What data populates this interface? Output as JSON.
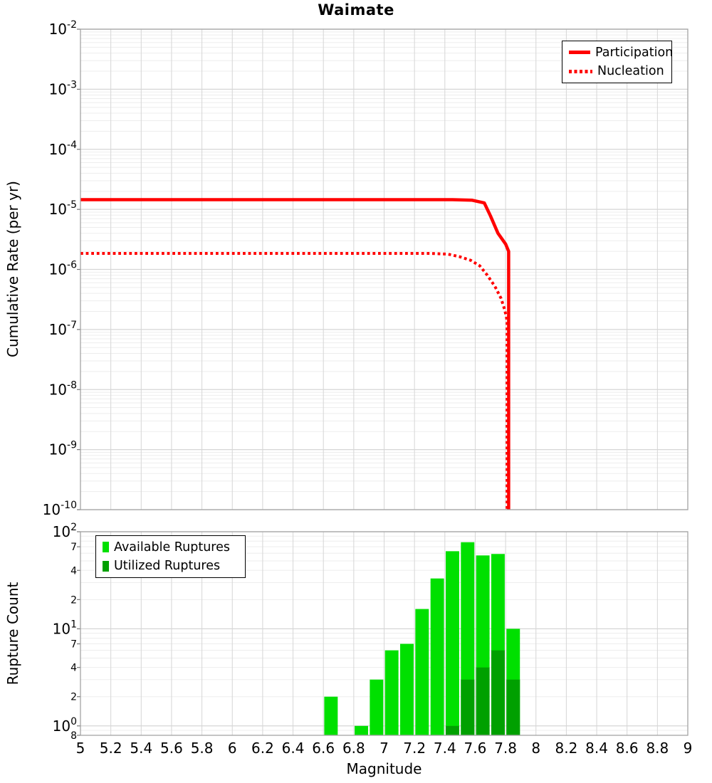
{
  "title": "Waimate",
  "x_axis": {
    "label": "Magnitude",
    "tick_labels": [
      "5",
      "5.2",
      "5.4",
      "5.6",
      "5.8",
      "6",
      "6.2",
      "6.4",
      "6.6",
      "6.8",
      "7",
      "7.2",
      "7.4",
      "7.6",
      "7.8",
      "8",
      "8.2",
      "8.4",
      "8.6",
      "8.8",
      "9"
    ]
  },
  "top_panel": {
    "ylabel": "Cumulative Rate (per yr)",
    "y_ticks": [
      {
        "exponent": "-2"
      },
      {
        "exponent": "-3"
      },
      {
        "exponent": "-4"
      },
      {
        "exponent": "-5"
      },
      {
        "exponent": "-6"
      },
      {
        "exponent": "-7"
      },
      {
        "exponent": "-8"
      },
      {
        "exponent": "-9"
      },
      {
        "exponent": "-10"
      }
    ]
  },
  "bottom_panel": {
    "ylabel": "Rupture Count",
    "y_ticks": [
      {
        "value": 100,
        "mantissa": "10",
        "exponent": "2"
      },
      {
        "value": 70,
        "mantissa": "7"
      },
      {
        "value": 40,
        "mantissa": "4"
      },
      {
        "value": 20,
        "mantissa": "2"
      },
      {
        "value": 10,
        "mantissa": "10",
        "exponent": "1"
      },
      {
        "value": 7,
        "mantissa": "7"
      },
      {
        "value": 4,
        "mantissa": "4"
      },
      {
        "value": 2,
        "mantissa": "2"
      },
      {
        "value": 1,
        "mantissa": "10",
        "exponent": "0"
      },
      {
        "value": 0.8,
        "mantissa": "8"
      }
    ]
  },
  "colors": {
    "line_red": "#ff0000",
    "available_green": "#00e000",
    "utilized_green": "#00a000",
    "grid_minor": "#ededed",
    "grid_major": "#d6d6d6",
    "axis_border": "#a3a3a3",
    "tick_mark": "#777777"
  },
  "chart_data": [
    {
      "type": "line",
      "title": "Waimate",
      "xlabel": "Magnitude",
      "ylabel": "Cumulative Rate (per yr)",
      "xlim": [
        5,
        9
      ],
      "ylim": [
        1e-10,
        0.01
      ],
      "yscale": "log",
      "grid": true,
      "legend_position": "top-right",
      "series": [
        {
          "name": "Participation",
          "style": "solid",
          "color": "#ff0000",
          "points": [
            [
              5.0,
              1.45e-05
            ],
            [
              7.45,
              1.45e-05
            ],
            [
              7.58,
              1.42e-05
            ],
            [
              7.66,
              1.28e-05
            ],
            [
              7.7,
              7.8e-06
            ],
            [
              7.75,
              4e-06
            ],
            [
              7.8,
              2.65e-06
            ],
            [
              7.82,
              2e-06
            ],
            [
              7.82,
              1e-10
            ]
          ]
        },
        {
          "name": "Nucleation",
          "style": "dotted",
          "color": "#ff0000",
          "points": [
            [
              5.0,
              1.85e-06
            ],
            [
              7.3,
              1.85e-06
            ],
            [
              7.42,
              1.8e-06
            ],
            [
              7.5,
              1.62e-06
            ],
            [
              7.57,
              1.42e-06
            ],
            [
              7.63,
              1.15e-06
            ],
            [
              7.68,
              8e-07
            ],
            [
              7.73,
              5.2e-07
            ],
            [
              7.77,
              3.3e-07
            ],
            [
              7.795,
              2.1e-07
            ],
            [
              7.81,
              1.4e-07
            ],
            [
              7.81,
              1e-10
            ]
          ]
        }
      ]
    },
    {
      "type": "bar",
      "xlabel": "Magnitude",
      "ylabel": "Rupture Count",
      "xlim": [
        5,
        9
      ],
      "ylim": [
        0.8,
        100
      ],
      "yscale": "log",
      "bin_width": 0.1,
      "grid": true,
      "legend_position": "top-left",
      "series": [
        {
          "name": "Available Ruptures",
          "color": "#00e000",
          "bins": [
            [
              6.65,
              2
            ],
            [
              6.85,
              1
            ],
            [
              6.95,
              3
            ],
            [
              7.05,
              6
            ],
            [
              7.15,
              7
            ],
            [
              7.25,
              16
            ],
            [
              7.35,
              33
            ],
            [
              7.45,
              63
            ],
            [
              7.55,
              78
            ],
            [
              7.65,
              57
            ],
            [
              7.75,
              59
            ],
            [
              7.85,
              10
            ]
          ]
        },
        {
          "name": "Utilized Ruptures",
          "color": "#00a000",
          "bins": [
            [
              7.45,
              1
            ],
            [
              7.55,
              3
            ],
            [
              7.65,
              4
            ],
            [
              7.75,
              6
            ],
            [
              7.85,
              3
            ]
          ]
        }
      ]
    }
  ]
}
